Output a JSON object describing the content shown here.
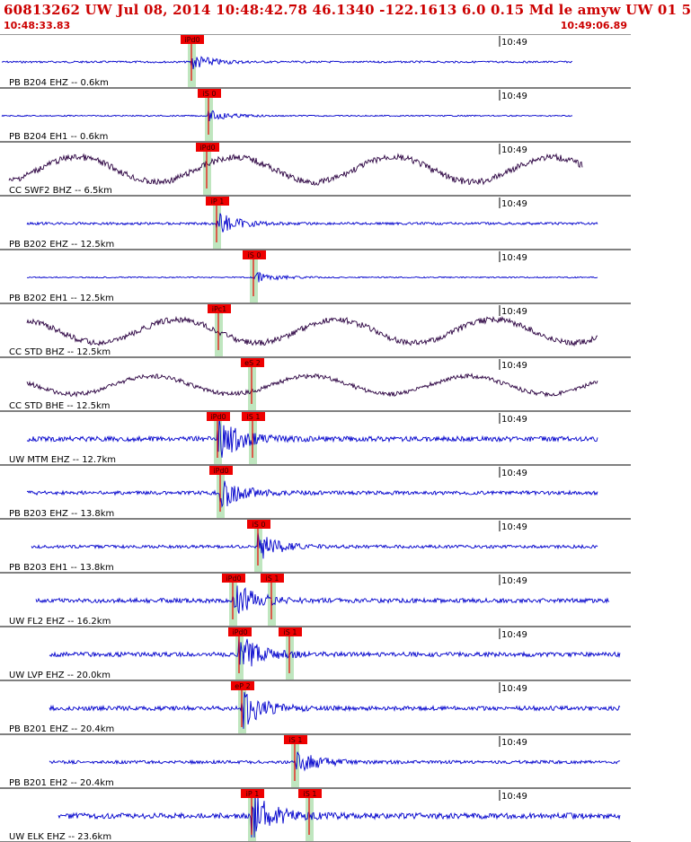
{
  "header": {
    "title": "60813262 UW Jul 08, 2014 10:48:42.78   46.1340 -122.1613  6.0 0.15 Md le amyw UW 01   5",
    "start_time": "10:48:33.83",
    "end_time": "10:49:06.89"
  },
  "colors": {
    "header_text": "#cc0000",
    "trace_short_period": "#0000cc",
    "trace_broadband": "#2a0040",
    "pick_box": "#ee0000",
    "pick_window": "#bfe6bf",
    "divider": "#000000"
  },
  "chart_data": {
    "type": "seismogram",
    "time_axis": {
      "start": "10:48:33.83",
      "end": "10:49:06.89",
      "minute_label": "10:49"
    },
    "traces": [
      {
        "name": "PB B204 EHZ -- 0.6km",
        "dist_km": 0.6,
        "color": "short",
        "picks": [
          {
            "label": "iPd0",
            "wave": "P"
          }
        ]
      },
      {
        "name": "PB B204 EH1 -- 0.6km",
        "dist_km": 0.6,
        "color": "short",
        "picks": [
          {
            "label": "iS 0",
            "wave": "S"
          }
        ]
      },
      {
        "name": "CC SWF2 BHZ -- 6.5km",
        "dist_km": 6.5,
        "color": "broad",
        "picks": [
          {
            "label": "iPd0",
            "wave": "P"
          }
        ]
      },
      {
        "name": "PB B202 EHZ -- 12.5km",
        "dist_km": 12.5,
        "color": "short",
        "picks": [
          {
            "label": "iP 1",
            "wave": "P"
          }
        ]
      },
      {
        "name": "PB B202 EH1 -- 12.5km",
        "dist_km": 12.5,
        "color": "short",
        "picks": [
          {
            "label": "iS 0",
            "wave": "S"
          }
        ]
      },
      {
        "name": "CC STD BHZ -- 12.5km",
        "dist_km": 12.5,
        "color": "broad",
        "picks": [
          {
            "label": "iPc1",
            "wave": "P"
          }
        ]
      },
      {
        "name": "CC STD BHE -- 12.5km",
        "dist_km": 12.5,
        "color": "broad",
        "picks": [
          {
            "label": "eS 2",
            "wave": "S"
          }
        ]
      },
      {
        "name": "UW MTM EHZ -- 12.7km",
        "dist_km": 12.7,
        "color": "short",
        "picks": [
          {
            "label": "iPd0",
            "wave": "P"
          },
          {
            "label": "iS 1",
            "wave": "S"
          }
        ]
      },
      {
        "name": "PB B203 EHZ -- 13.8km",
        "dist_km": 13.8,
        "color": "short",
        "picks": [
          {
            "label": "iPd0",
            "wave": "P"
          }
        ]
      },
      {
        "name": "PB B203 EH1 -- 13.8km",
        "dist_km": 13.8,
        "color": "short",
        "picks": [
          {
            "label": "iS 0",
            "wave": "S"
          }
        ]
      },
      {
        "name": "UW FL2 EHZ -- 16.2km",
        "dist_km": 16.2,
        "color": "short",
        "picks": [
          {
            "label": "iPd0",
            "wave": "P"
          },
          {
            "label": "iS 1",
            "wave": "S"
          }
        ]
      },
      {
        "name": "UW LVP EHZ -- 20.0km",
        "dist_km": 20.0,
        "color": "short",
        "picks": [
          {
            "label": "iPd0",
            "wave": "P"
          },
          {
            "label": "iS 1",
            "wave": "S"
          }
        ]
      },
      {
        "name": "PB B201 EHZ -- 20.4km",
        "dist_km": 20.4,
        "color": "short",
        "picks": [
          {
            "label": "eP 2",
            "wave": "P"
          }
        ]
      },
      {
        "name": "PB B201 EH2 -- 20.4km",
        "dist_km": 20.4,
        "color": "short",
        "picks": [
          {
            "label": "iS 1",
            "wave": "S"
          }
        ]
      },
      {
        "name": "UW ELK EHZ -- 23.6km",
        "dist_km": 23.6,
        "color": "short",
        "picks": [
          {
            "label": "iP 1",
            "wave": "P"
          },
          {
            "label": "iS 1",
            "wave": "S"
          }
        ]
      }
    ]
  }
}
